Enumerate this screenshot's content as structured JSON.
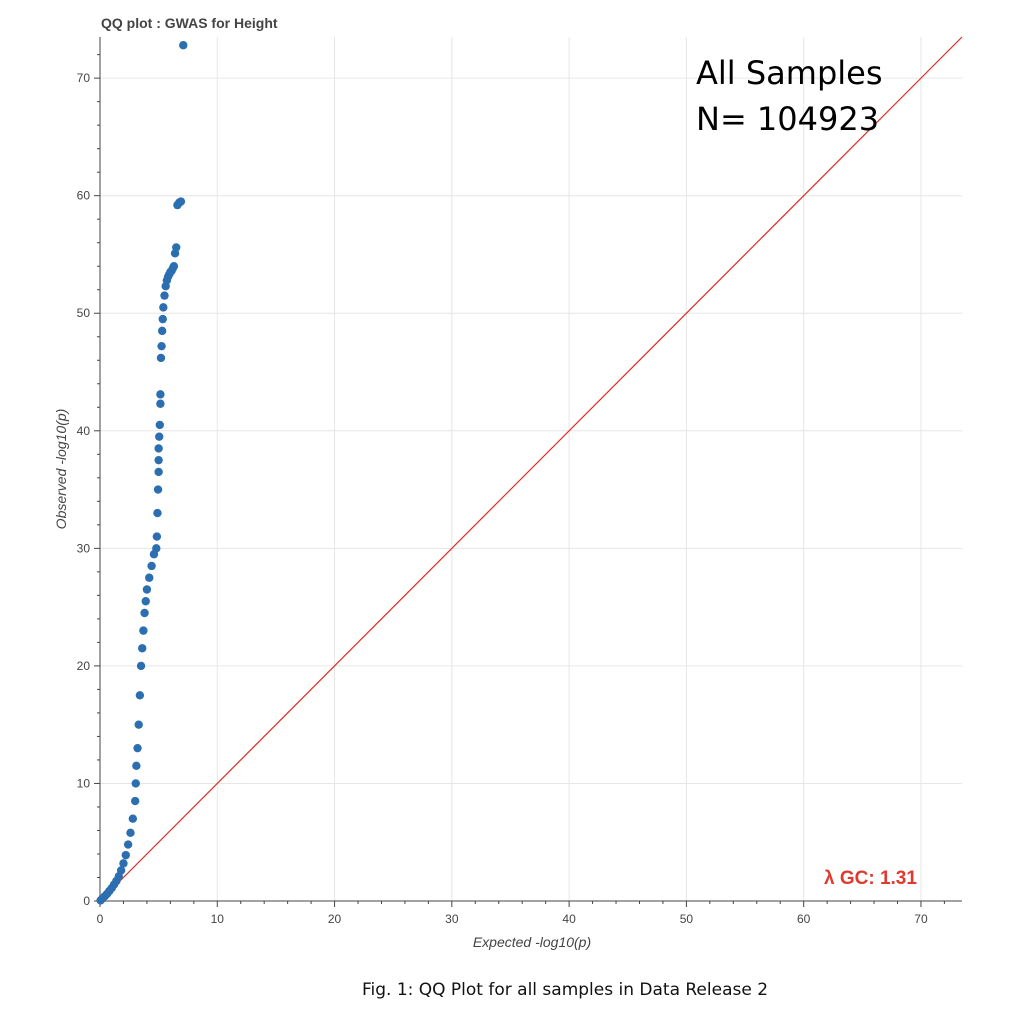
{
  "chart_data": {
    "type": "scatter",
    "title": "QQ plot : GWAS for Height",
    "xlabel": "Expected -log10(p)",
    "ylabel": "Observed -log10(p)",
    "xlim": [
      0,
      73.5
    ],
    "ylim": [
      0,
      73.5
    ],
    "xticks": [
      0,
      10,
      20,
      30,
      40,
      50,
      60,
      70
    ],
    "yticks": [
      0,
      10,
      20,
      30,
      40,
      50,
      60,
      70
    ],
    "xtick_labels": [
      "0",
      "10",
      "20",
      "30",
      "40",
      "50",
      "60",
      "70"
    ],
    "ytick_labels": [
      "0",
      "10",
      "20",
      "30",
      "40",
      "50",
      "60",
      "70"
    ],
    "grid": true,
    "series": [
      {
        "x": [
          0.05,
          0.2,
          0.4,
          0.6,
          0.8,
          1.0,
          1.2,
          1.4,
          1.6,
          1.8,
          2.0,
          2.2,
          2.4,
          2.6,
          2.8,
          3.0,
          3.05,
          3.1,
          3.2,
          3.3,
          3.4,
          3.5,
          3.6,
          3.7,
          3.8,
          3.9,
          4.0,
          4.2,
          4.4,
          4.6,
          4.8,
          4.85,
          4.9,
          4.95,
          5.0,
          5.0,
          5.0,
          5.05,
          5.1,
          5.15,
          5.15,
          5.2,
          5.25,
          5.3,
          5.35,
          5.4,
          5.5,
          5.6,
          5.7,
          5.8,
          5.9,
          6.0,
          6.1,
          6.2,
          6.3,
          6.4,
          6.5,
          6.6,
          6.75,
          6.9,
          7.1
        ],
        "y": [
          0.05,
          0.2,
          0.4,
          0.6,
          0.85,
          1.1,
          1.4,
          1.7,
          2.1,
          2.6,
          3.2,
          3.9,
          4.8,
          5.8,
          7.0,
          8.5,
          10.0,
          11.5,
          13.0,
          15.0,
          17.5,
          20.0,
          21.5,
          23.0,
          24.5,
          25.5,
          26.5,
          27.5,
          28.5,
          29.5,
          30.0,
          31.0,
          33.0,
          35.0,
          36.5,
          37.5,
          38.5,
          39.5,
          40.5,
          42.3,
          43.1,
          46.2,
          47.2,
          48.5,
          49.5,
          50.5,
          51.5,
          52.3,
          52.8,
          53.1,
          53.3,
          53.5,
          53.6,
          53.8,
          54.0,
          55.1,
          55.6,
          59.2,
          59.4,
          59.5,
          72.8
        ]
      }
    ],
    "reference_line": {
      "x": [
        0,
        73.5
      ],
      "y": [
        0,
        73.5
      ]
    },
    "colors": {
      "points": "#2b6fb0",
      "reference_line": "#e02a22",
      "lambda_text": "#e03a2e",
      "grid": "#e6e6e6",
      "axis": "#444444"
    },
    "annotations": {
      "samples_line1": "All Samples",
      "samples_line2": "N= 104923",
      "lambda": "λ GC: 1.31"
    }
  },
  "caption": "Fig. 1: QQ Plot for all samples in Data Release 2"
}
